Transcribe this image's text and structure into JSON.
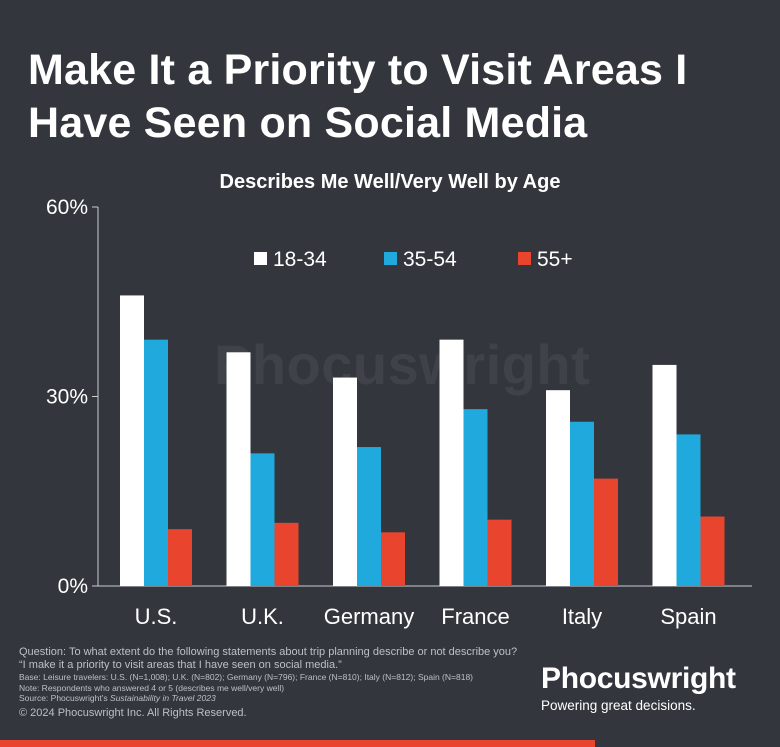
{
  "title": "Make It a Priority to Visit Areas I Have Seen on Social Media",
  "watermark": "Phocuswright",
  "chart_data": {
    "type": "bar",
    "title": "Describes Me Well/Very Well by Age",
    "categories": [
      "U.S.",
      "U.K.",
      "Germany",
      "France",
      "Italy",
      "Spain"
    ],
    "series": [
      {
        "name": "18-34",
        "color": "#ffffff",
        "values": [
          46,
          37,
          33,
          39,
          31,
          35
        ]
      },
      {
        "name": "35-54",
        "color": "#1fa9dc",
        "values": [
          39,
          21,
          22,
          28,
          26,
          24
        ]
      },
      {
        "name": "55+",
        "color": "#e9442d",
        "values": [
          9,
          10,
          8.5,
          10.5,
          17,
          11
        ]
      }
    ],
    "yticks": [
      "60%",
      "30%",
      "0%"
    ],
    "ylim": [
      0,
      60
    ],
    "legend_position": "top-center",
    "grid": false
  },
  "footnotes": {
    "question": "Question: To what extent do the following statements about trip planning describe or not describe you?",
    "statement": "“I make it a priority to visit areas that I have seen on social media.”",
    "base": "Base: Leisure travelers: U.S. (N=1,008); U.K. (N=802); Germany (N=796); France (N=810); Italy (N=812); Spain (N=818)",
    "note": "Note: Respondents who answered 4 or 5 (describes me well/very well)",
    "source_prefix": "Source: Phocuswright’s ",
    "source_title": "Sustainability in Travel 2023",
    "copyright": "© 2024 Phocuswright Inc. All Rights Reserved."
  },
  "brand": {
    "name": "Phocuswright",
    "tagline": "Powering great decisions."
  }
}
